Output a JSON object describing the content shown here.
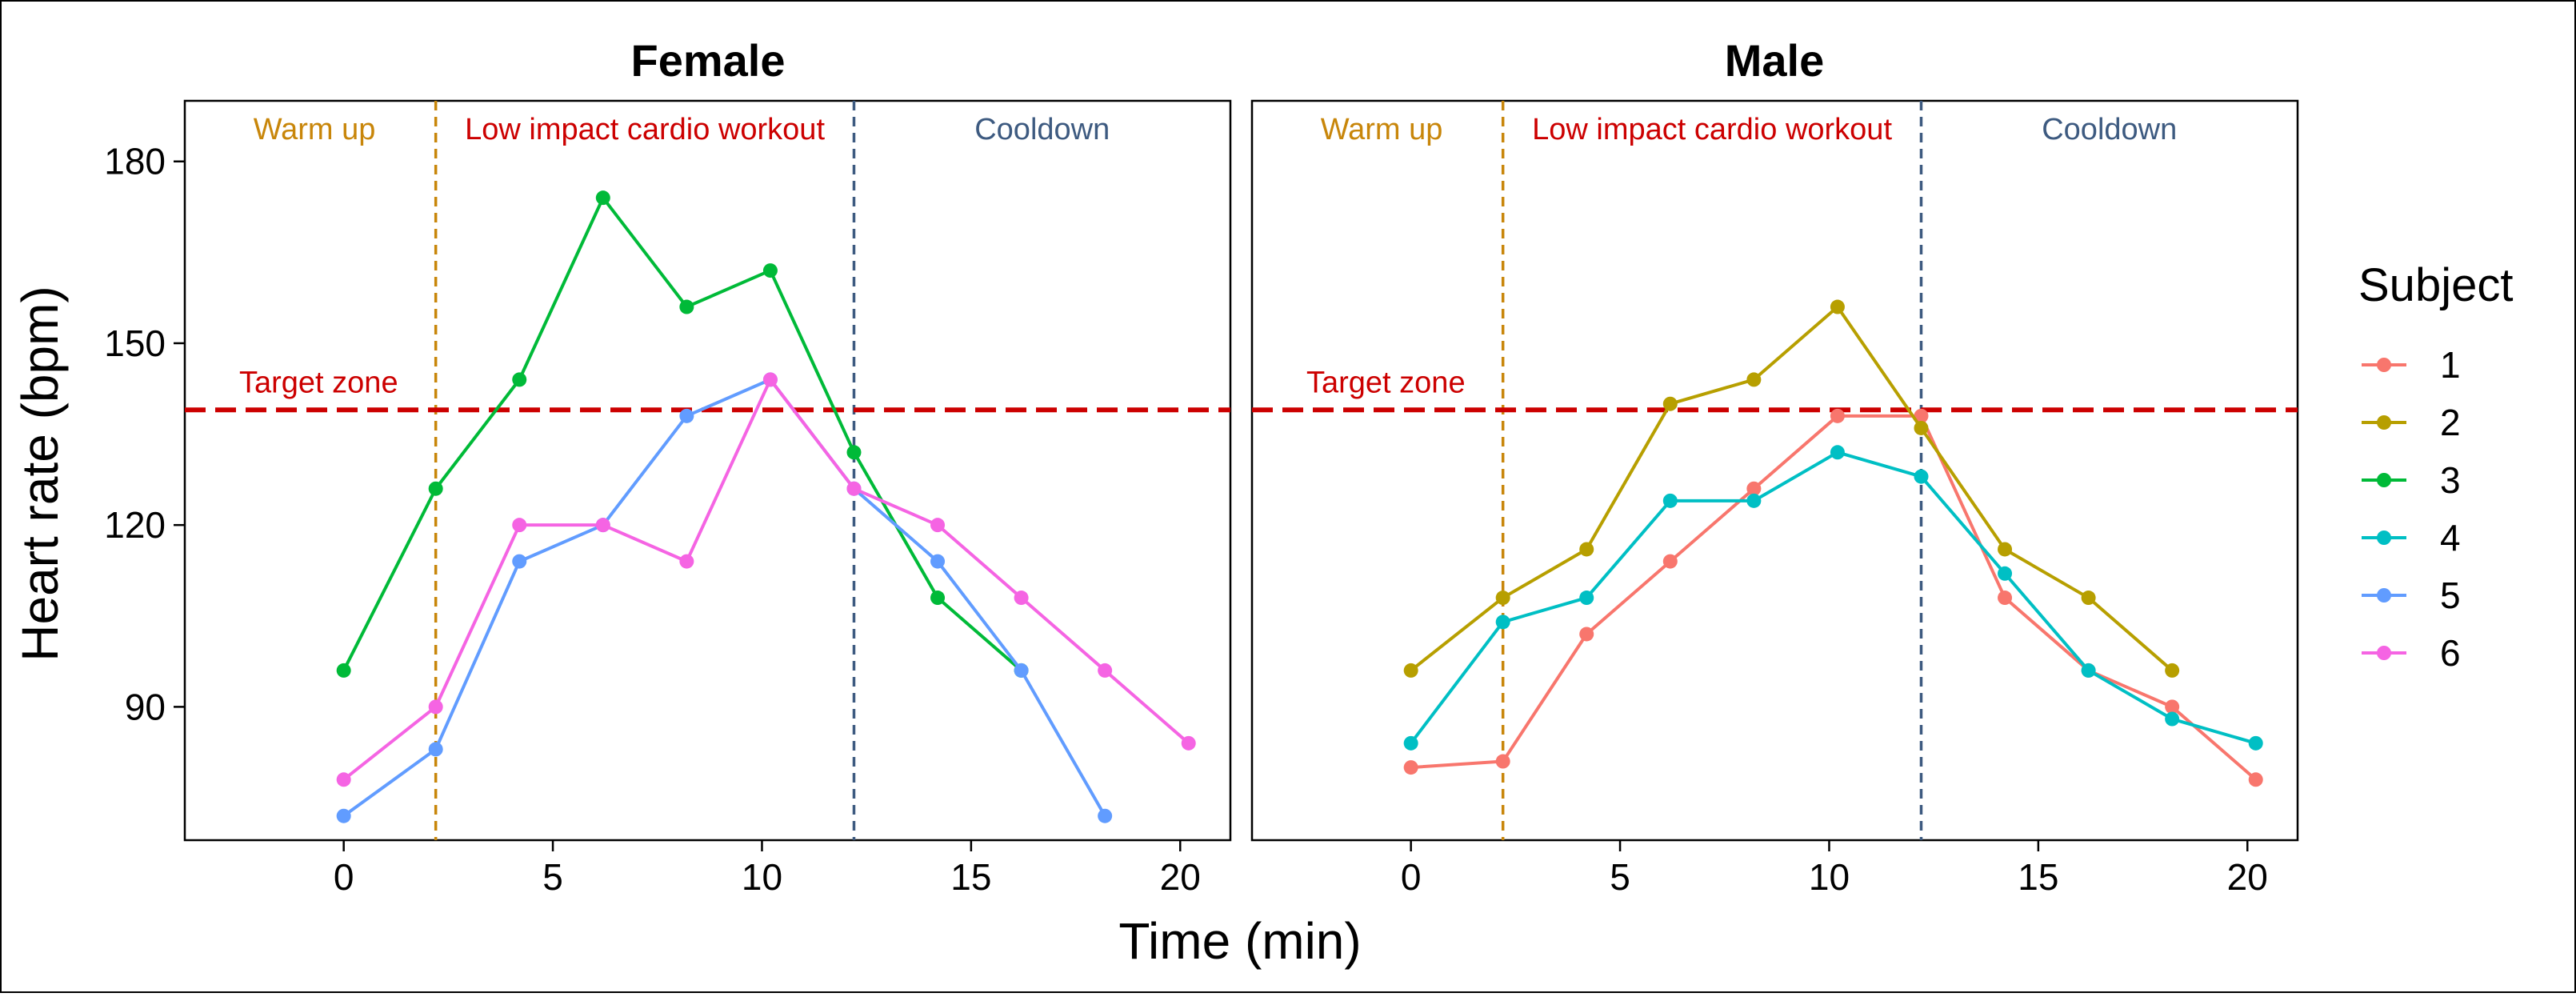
{
  "chart_data": {
    "type": "line",
    "xlabel": "Time (min)",
    "ylabel": "Heart rate (bpm)",
    "xlim": [
      -3.8,
      21.2
    ],
    "ylim": [
      68,
      190
    ],
    "x_ticks": [
      0,
      5,
      10,
      15,
      20
    ],
    "y_ticks": [
      90,
      120,
      150,
      180
    ],
    "grid": false,
    "target_zone": {
      "value": 139,
      "label": "Target zone",
      "color": "#CC0000"
    },
    "phases": [
      {
        "label": "Warm up",
        "center": -0.7,
        "color": "#C8860A"
      },
      {
        "label": "Low impact cardio workout",
        "center": 7.2,
        "color": "#CC0000"
      },
      {
        "label": "Cooldown",
        "center": 16.7,
        "color": "#3D5A80"
      }
    ],
    "phase_boundaries": [
      {
        "x": 2.2,
        "color": "#C8860A"
      },
      {
        "x": 12.2,
        "color": "#3D5A80"
      }
    ],
    "legend": {
      "title": "Subject",
      "position": "right",
      "entries": [
        {
          "label": "1",
          "color": "#F8766D"
        },
        {
          "label": "2",
          "color": "#B79F00"
        },
        {
          "label": "3",
          "color": "#00BA38"
        },
        {
          "label": "4",
          "color": "#00BFC4"
        },
        {
          "label": "5",
          "color": "#619CFF"
        },
        {
          "label": "6",
          "color": "#F564E3"
        }
      ]
    },
    "panels": [
      {
        "title": "Female",
        "series": [
          {
            "name": "3",
            "color": "#00BA38",
            "x": [
              0,
              2.2,
              4.2,
              6.2,
              8.2,
              10.2,
              12.2,
              14.2,
              16.2
            ],
            "y": [
              96,
              126,
              144,
              174,
              156,
              162,
              132,
              108,
              96
            ]
          },
          {
            "name": "5",
            "color": "#619CFF",
            "x": [
              0,
              2.2,
              4.2,
              6.2,
              8.2,
              10.2,
              12.2,
              14.2,
              16.2,
              18.2
            ],
            "y": [
              72,
              83,
              114,
              120,
              138,
              144,
              126,
              114,
              96,
              72
            ]
          },
          {
            "name": "6",
            "color": "#F564E3",
            "x": [
              0,
              2.2,
              4.2,
              6.2,
              8.2,
              10.2,
              12.2,
              14.2,
              16.2,
              18.2,
              20.2
            ],
            "y": [
              78,
              90,
              120,
              120,
              114,
              144,
              126,
              120,
              108,
              96,
              84
            ]
          }
        ]
      },
      {
        "title": "Male",
        "series": [
          {
            "name": "1",
            "color": "#F8766D",
            "x": [
              0,
              2.2,
              4.2,
              6.2,
              8.2,
              10.2,
              12.2,
              14.2,
              16.2,
              18.2,
              20.2
            ],
            "y": [
              80,
              81,
              102,
              114,
              126,
              138,
              138,
              108,
              96,
              90,
              78
            ]
          },
          {
            "name": "2",
            "color": "#B79F00",
            "x": [
              0,
              2.2,
              4.2,
              6.2,
              8.2,
              10.2,
              12.2,
              14.2,
              16.2,
              18.2
            ],
            "y": [
              96,
              108,
              116,
              140,
              144,
              156,
              136,
              116,
              108,
              96
            ]
          },
          {
            "name": "4",
            "color": "#00BFC4",
            "x": [
              0,
              2.2,
              4.2,
              6.2,
              8.2,
              10.2,
              12.2,
              14.2,
              16.2,
              18.2,
              20.2
            ],
            "y": [
              84,
              104,
              108,
              124,
              124,
              132,
              128,
              112,
              96,
              88,
              84
            ]
          }
        ]
      }
    ]
  }
}
